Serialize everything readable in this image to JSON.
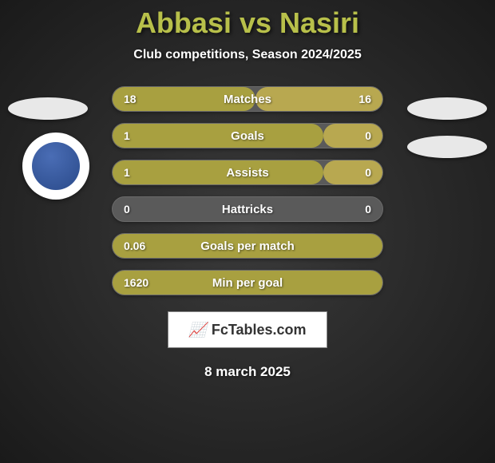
{
  "header": {
    "title": "Abbasi vs Nasiri",
    "subtitle": "Club competitions, Season 2024/2025"
  },
  "stats": [
    {
      "label": "Matches",
      "left_value": "18",
      "right_value": "16",
      "left_bar_pct": 53,
      "right_bar_pct": 47,
      "left_color": "#a8a040",
      "right_color": "#b8a850"
    },
    {
      "label": "Goals",
      "left_value": "1",
      "right_value": "0",
      "left_bar_pct": 78,
      "right_bar_pct": 22,
      "left_color": "#a8a040",
      "right_color": "#b8a850"
    },
    {
      "label": "Assists",
      "left_value": "1",
      "right_value": "0",
      "left_bar_pct": 78,
      "right_bar_pct": 22,
      "left_color": "#a8a040",
      "right_color": "#b8a850"
    },
    {
      "label": "Hattricks",
      "left_value": "0",
      "right_value": "0",
      "left_bar_pct": 0,
      "right_bar_pct": 0,
      "left_color": "#a8a040",
      "right_color": "#b8a850"
    },
    {
      "label": "Goals per match",
      "left_value": "0.06",
      "right_value": "",
      "left_bar_pct": 100,
      "right_bar_pct": 0,
      "left_color": "#a8a040",
      "right_color": "#b8a850"
    },
    {
      "label": "Min per goal",
      "left_value": "1620",
      "right_value": "",
      "left_bar_pct": 100,
      "right_bar_pct": 0,
      "left_color": "#a8a040",
      "right_color": "#b8a850"
    }
  ],
  "branding": {
    "text": "FcTables.com"
  },
  "footer": {
    "date": "8 march 2025"
  },
  "colors": {
    "title_color": "#b8c04a",
    "text_color": "#ffffff",
    "bar_bg": "#5a5a5a",
    "page_bg_inner": "#3a3a3a",
    "page_bg_outer": "#1a1a1a"
  }
}
